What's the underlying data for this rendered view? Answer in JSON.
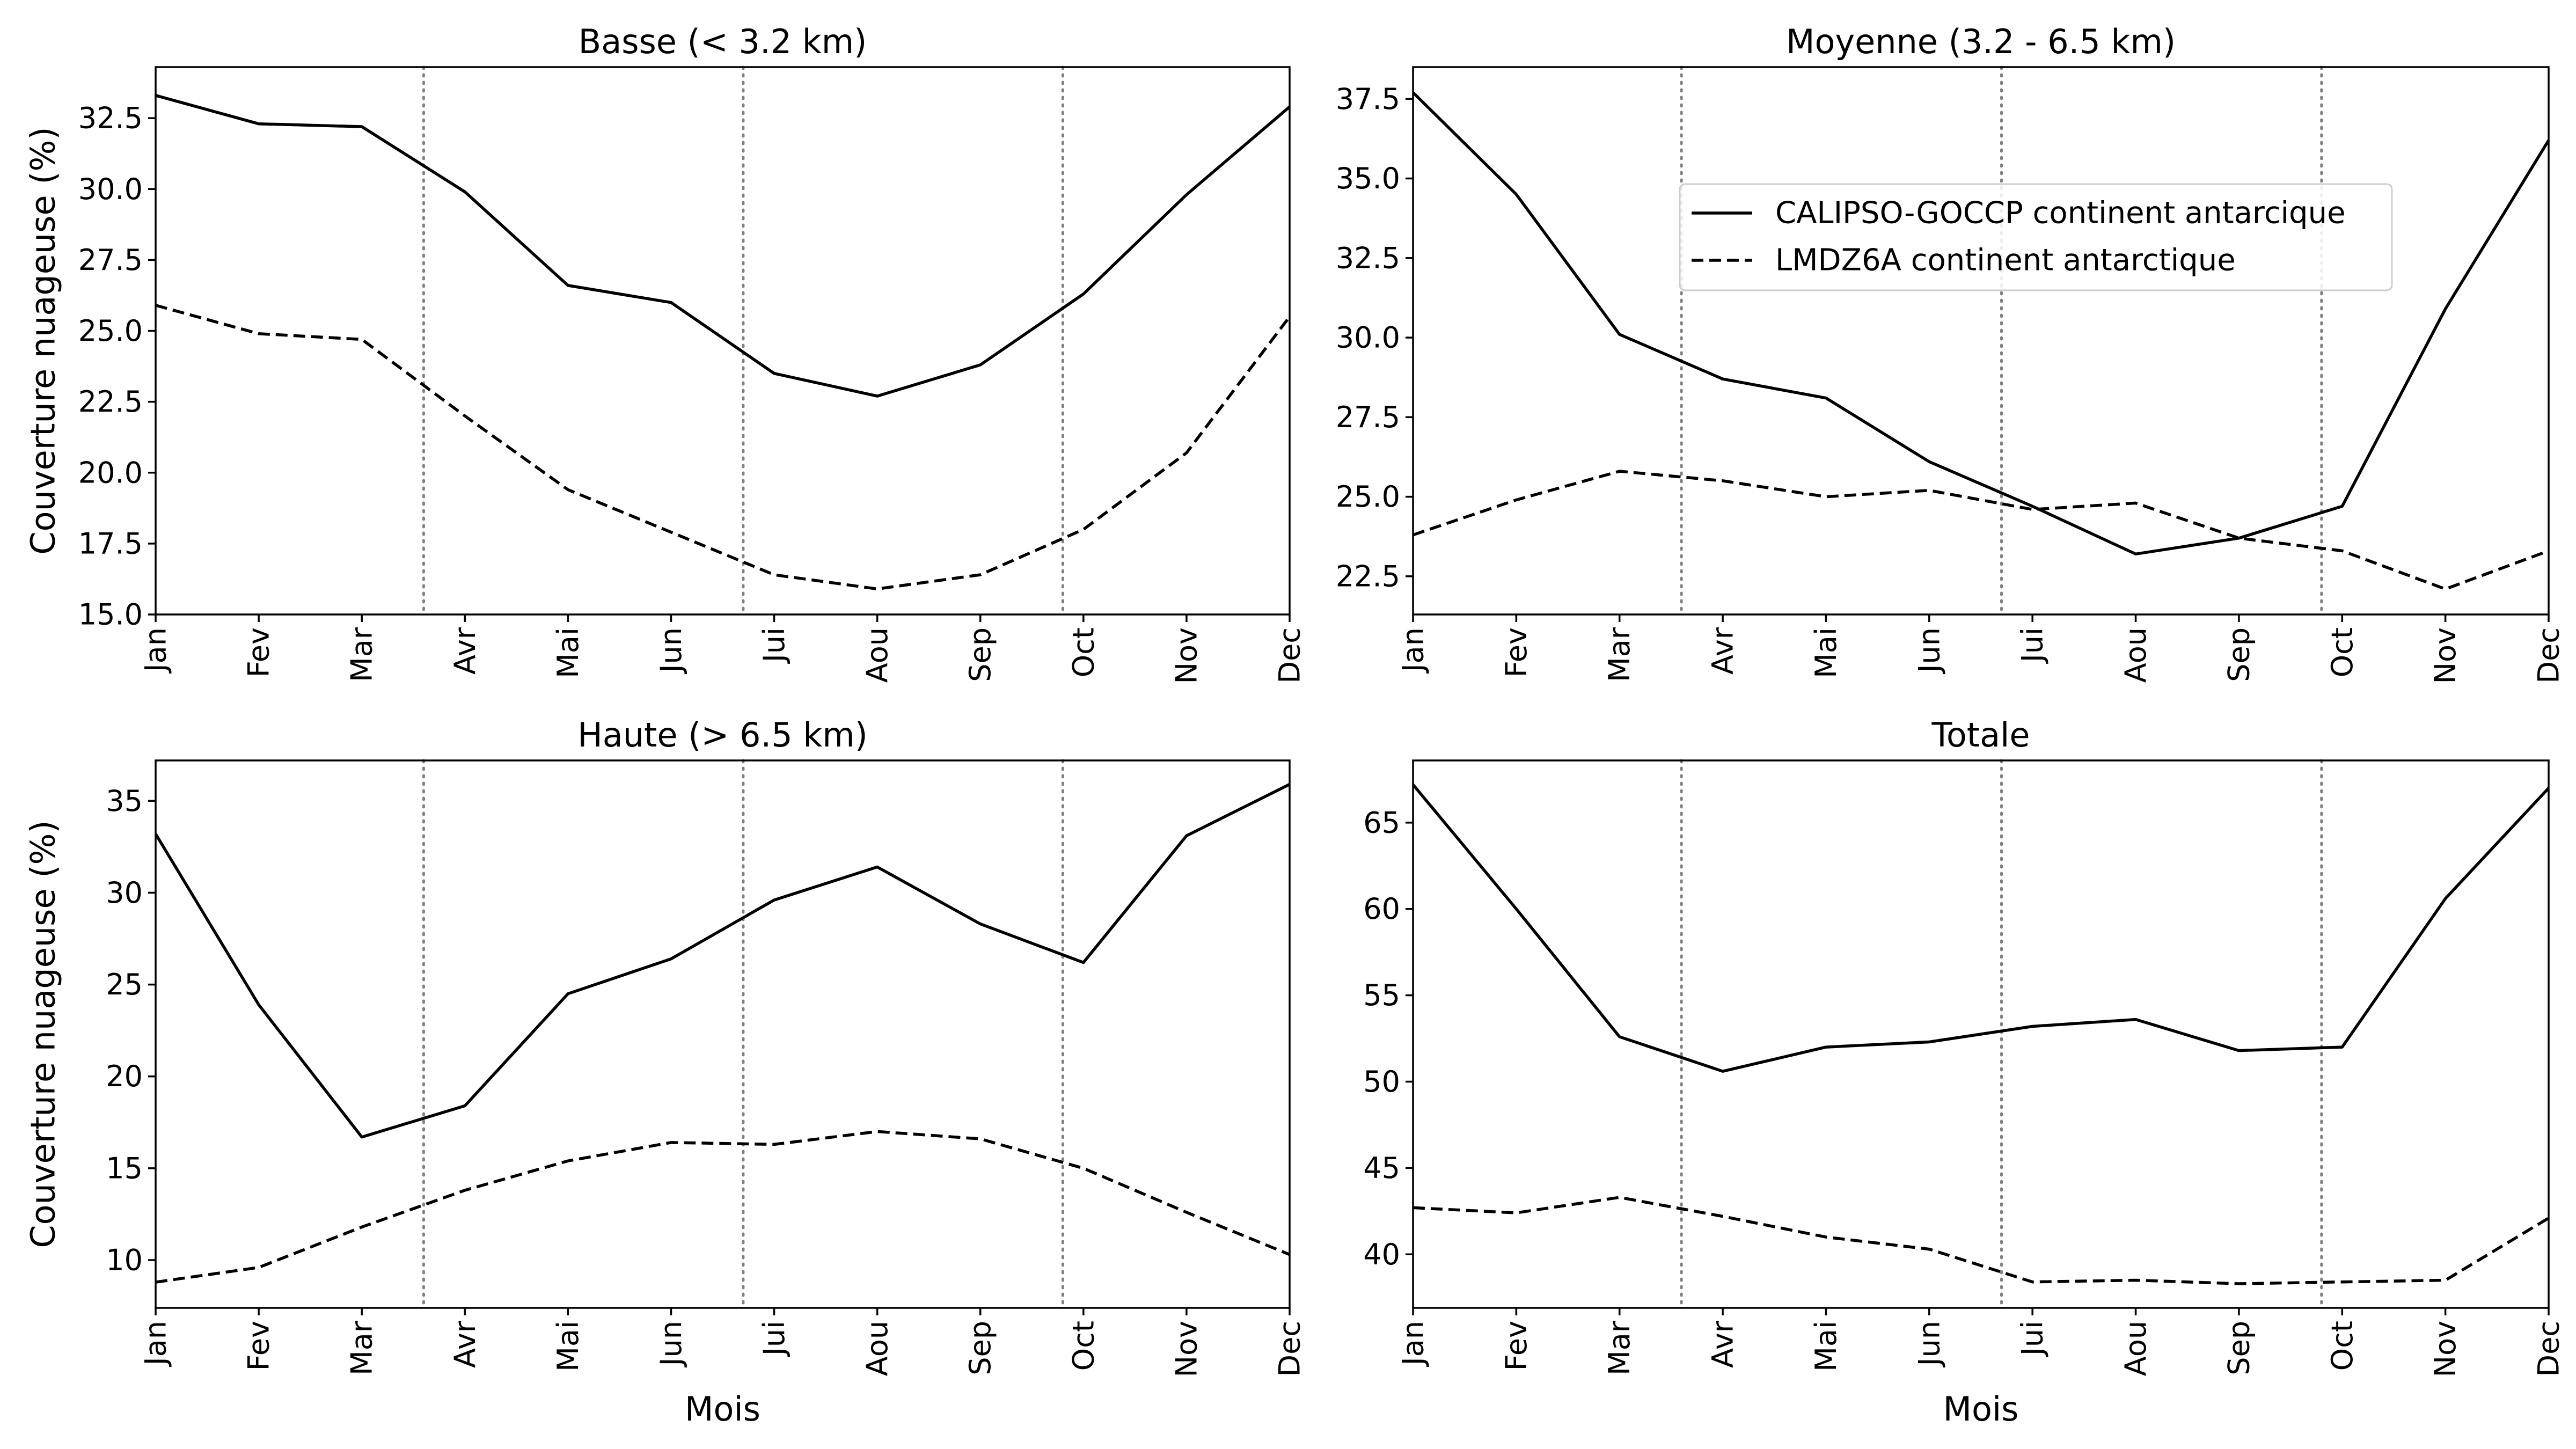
{
  "figure": {
    "background": "#ffffff",
    "line_color": "#000000",
    "guide_color": "#808080",
    "legend": {
      "placement": "upper-right of top-right panel",
      "entries": [
        {
          "label": "CALIPSO-GOCCP continent antarcique",
          "style": "solid"
        },
        {
          "label": "LMDZ6A continent antarctique",
          "style": "dashed"
        }
      ]
    }
  },
  "chart_data": [
    {
      "type": "line",
      "title": "Basse (< 3.2 km)",
      "xlabel": "",
      "ylabel": "Couverture nuageuse (%)",
      "categories": [
        "Jan",
        "Fev",
        "Mar",
        "Avr",
        "Mai",
        "Jun",
        "Jui",
        "Aou",
        "Sep",
        "Oct",
        "Nov",
        "Dec"
      ],
      "ylim": [
        15.0,
        34.3
      ],
      "yticks": [
        15.0,
        17.5,
        20.0,
        22.5,
        25.0,
        27.5,
        30.0,
        32.5
      ],
      "tick_decimals": 1,
      "season_dividers": [
        2.6,
        5.7,
        8.8
      ],
      "grid": false,
      "series": [
        {
          "name": "CALIPSO-GOCCP continent antarcique",
          "style": "solid",
          "values": [
            33.3,
            32.3,
            32.2,
            29.9,
            26.6,
            26.0,
            23.5,
            22.7,
            23.8,
            26.3,
            29.8,
            32.9
          ]
        },
        {
          "name": "LMDZ6A continent antarctique",
          "style": "dashed",
          "values": [
            25.9,
            24.9,
            24.7,
            22.0,
            19.4,
            17.9,
            16.4,
            15.9,
            16.4,
            18.0,
            20.7,
            25.5
          ]
        }
      ]
    },
    {
      "type": "line",
      "title": "Moyenne (3.2 - 6.5 km)",
      "xlabel": "",
      "ylabel": "",
      "categories": [
        "Jan",
        "Fev",
        "Mar",
        "Avr",
        "Mai",
        "Jun",
        "Jui",
        "Aou",
        "Sep",
        "Oct",
        "Nov",
        "Dec"
      ],
      "ylim": [
        21.3,
        38.5
      ],
      "yticks": [
        22.5,
        25.0,
        27.5,
        30.0,
        32.5,
        35.0,
        37.5
      ],
      "tick_decimals": 1,
      "season_dividers": [
        2.6,
        5.7,
        8.8
      ],
      "grid": false,
      "series": [
        {
          "name": "CALIPSO-GOCCP continent antarcique",
          "style": "solid",
          "values": [
            37.7,
            34.5,
            30.1,
            28.7,
            28.1,
            26.1,
            24.7,
            23.2,
            23.7,
            24.7,
            30.9,
            36.2
          ]
        },
        {
          "name": "LMDZ6A continent antarctique",
          "style": "dashed",
          "values": [
            23.8,
            24.9,
            25.8,
            25.5,
            25.0,
            25.2,
            24.6,
            24.8,
            23.7,
            23.3,
            22.1,
            23.3
          ]
        }
      ]
    },
    {
      "type": "line",
      "title": "Haute (> 6.5 km)",
      "xlabel": "Mois",
      "ylabel": "Couverture nuageuse (%)",
      "categories": [
        "Jan",
        "Fev",
        "Mar",
        "Avr",
        "Mai",
        "Jun",
        "Jui",
        "Aou",
        "Sep",
        "Oct",
        "Nov",
        "Dec"
      ],
      "ylim": [
        7.4,
        37.2
      ],
      "yticks": [
        10,
        15,
        20,
        25,
        30,
        35
      ],
      "tick_decimals": 0,
      "season_dividers": [
        2.6,
        5.7,
        8.8
      ],
      "grid": false,
      "series": [
        {
          "name": "CALIPSO-GOCCP continent antarcique",
          "style": "solid",
          "values": [
            33.2,
            23.9,
            16.7,
            18.4,
            24.5,
            26.4,
            29.6,
            31.4,
            28.3,
            26.2,
            33.1,
            35.9
          ]
        },
        {
          "name": "LMDZ6A continent antarctique",
          "style": "dashed",
          "values": [
            8.8,
            9.6,
            11.8,
            13.8,
            15.4,
            16.4,
            16.3,
            17.0,
            16.6,
            15.0,
            12.6,
            10.3
          ]
        }
      ]
    },
    {
      "type": "line",
      "title": "Totale",
      "xlabel": "Mois",
      "ylabel": "",
      "categories": [
        "Jan",
        "Fev",
        "Mar",
        "Avr",
        "Mai",
        "Jun",
        "Jui",
        "Aou",
        "Sep",
        "Oct",
        "Nov",
        "Dec"
      ],
      "ylim": [
        36.9,
        68.6
      ],
      "yticks": [
        40,
        45,
        50,
        55,
        60,
        65
      ],
      "tick_decimals": 0,
      "season_dividers": [
        2.6,
        5.7,
        8.8
      ],
      "grid": false,
      "series": [
        {
          "name": "CALIPSO-GOCCP continent antarcique",
          "style": "solid",
          "values": [
            67.2,
            60.0,
            52.6,
            50.6,
            52.0,
            52.3,
            53.2,
            53.6,
            51.8,
            52.0,
            60.6,
            67.0
          ]
        },
        {
          "name": "LMDZ6A continent antarctique",
          "style": "dashed",
          "values": [
            42.7,
            42.4,
            43.3,
            42.2,
            41.0,
            40.3,
            38.4,
            38.5,
            38.3,
            38.4,
            38.5,
            42.1
          ]
        }
      ]
    }
  ]
}
